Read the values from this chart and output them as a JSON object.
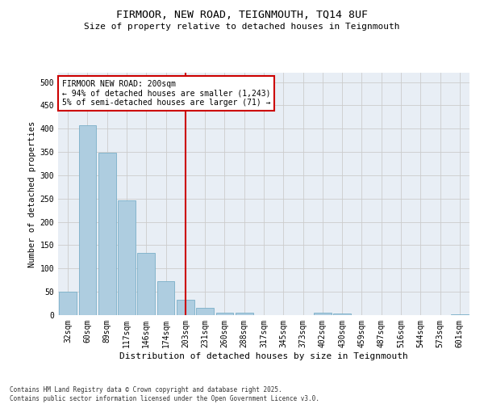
{
  "title_line1": "FIRMOOR, NEW ROAD, TEIGNMOUTH, TQ14 8UF",
  "title_line2": "Size of property relative to detached houses in Teignmouth",
  "xlabel": "Distribution of detached houses by size in Teignmouth",
  "ylabel": "Number of detached properties",
  "categories": [
    "32sqm",
    "60sqm",
    "89sqm",
    "117sqm",
    "146sqm",
    "174sqm",
    "203sqm",
    "231sqm",
    "260sqm",
    "288sqm",
    "317sqm",
    "345sqm",
    "373sqm",
    "402sqm",
    "430sqm",
    "459sqm",
    "487sqm",
    "516sqm",
    "544sqm",
    "573sqm",
    "601sqm"
  ],
  "values": [
    50,
    408,
    348,
    246,
    133,
    72,
    33,
    16,
    5,
    5,
    0,
    0,
    0,
    5,
    3,
    0,
    0,
    0,
    0,
    0,
    2
  ],
  "bar_color": "#aecde0",
  "bar_edge_color": "#7aafc8",
  "vline_color": "#cc0000",
  "annotation_title": "FIRMOOR NEW ROAD: 200sqm",
  "annotation_line1": "← 94% of detached houses are smaller (1,243)",
  "annotation_line2": "5% of semi-detached houses are larger (71) →",
  "annotation_box_color": "#ffffff",
  "annotation_box_edge": "#cc0000",
  "ylim": [
    0,
    520
  ],
  "yticks": [
    0,
    50,
    100,
    150,
    200,
    250,
    300,
    350,
    400,
    450,
    500
  ],
  "grid_color": "#cccccc",
  "bg_color": "#e8eef5",
  "footer_line1": "Contains HM Land Registry data © Crown copyright and database right 2025.",
  "footer_line2": "Contains public sector information licensed under the Open Government Licence v3.0."
}
